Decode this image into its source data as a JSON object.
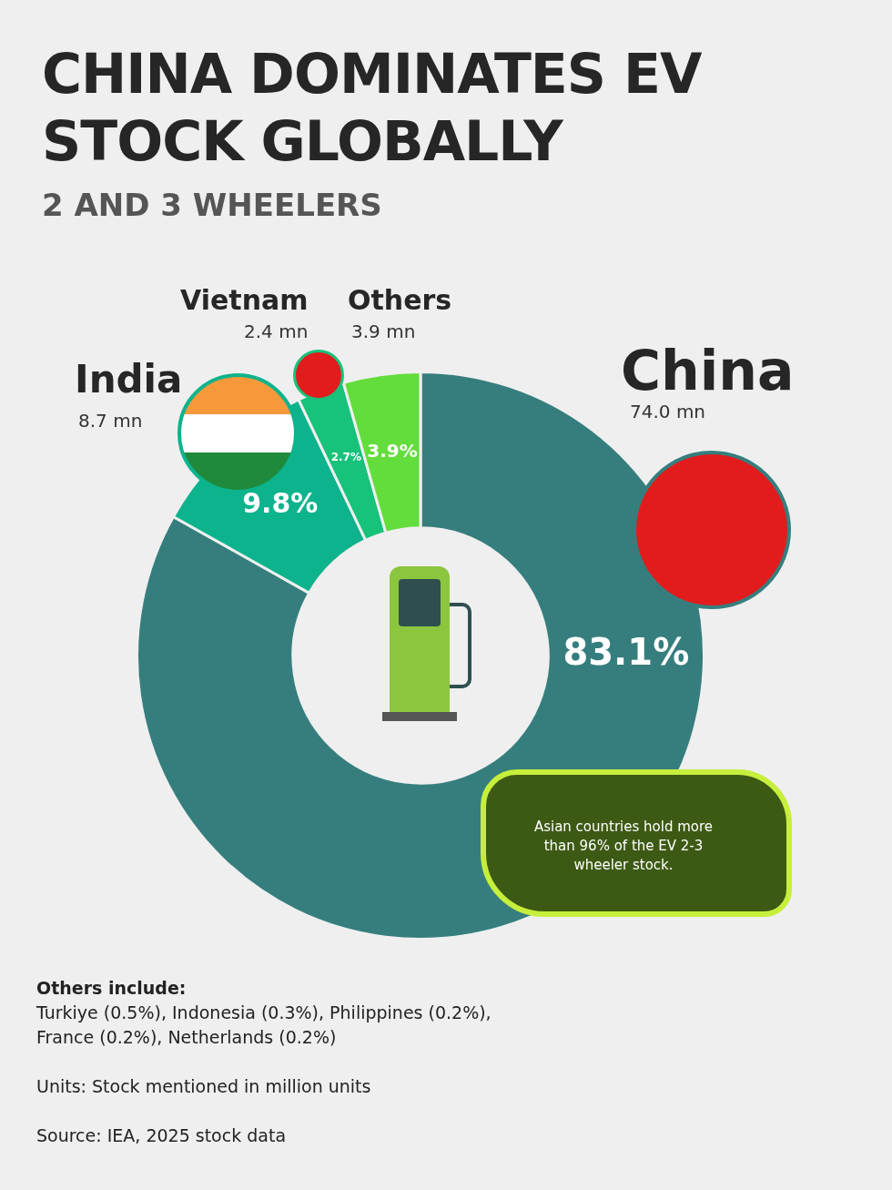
{
  "chart_data": {
    "type": "donut",
    "title": "CHINA DOMINATES EV STOCK GLOBALLY",
    "subtitle": "2 AND 3 WHEELERS",
    "categories": [
      "China",
      "India",
      "Vietnam",
      "Others"
    ],
    "values": [
      74.0,
      8.7,
      2.4,
      3.9
    ],
    "value_labels": [
      "74.0 mn",
      "8.7 mn",
      "2.4 mn",
      "3.9 mn"
    ],
    "colors": [
      "#367e7e",
      "#0db38c",
      "#17c27a",
      "#63dd3b"
    ],
    "legend": false,
    "annotations": [
      {
        "text": "83.1%",
        "x": "China"
      },
      {
        "text": "9.8%",
        "x": "India"
      },
      {
        "text": "2.7%",
        "x": "Vietnam"
      },
      {
        "text": "3.9%",
        "x": "Others"
      },
      "Asian countries hold more than 96% of the EV 2-3 wheeler stock.",
      "Others include:",
      "Turkiye (0.5%), Indonesia (0.3%), Philippines (0.2%), France (0.2%), Netherlands (0.2%)",
      "Units: Stock mentioned in million units",
      "Source: IEA, 2025 stock data"
    ]
  }
}
